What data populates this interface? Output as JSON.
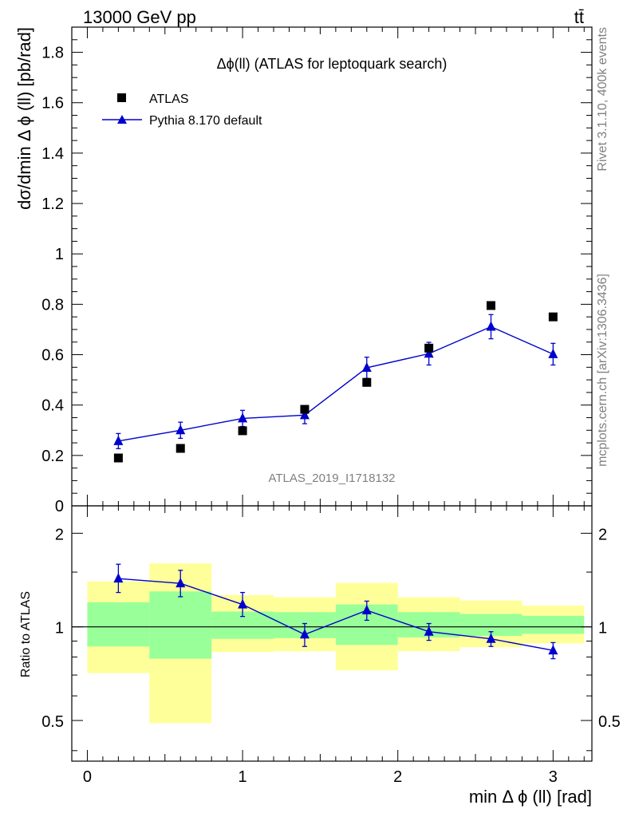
{
  "header": {
    "left": "13000 GeV pp",
    "right": "tt̄"
  },
  "side_labels": {
    "rivet": "Rivet 3.1.10,  400k events",
    "mcplots": "mcplots.cern.ch [arXiv:1306.3436]"
  },
  "chart_data": [
    {
      "type": "scatter",
      "title": "Δϕ(ll) (ATLAS for leptoquark search)",
      "watermark": "ATLAS_2019_I1718132",
      "ylabel": "dσ/dmin Δ ϕ (ll) [pb/rad]",
      "xlim": [
        -0.1,
        3.25
      ],
      "ylim": [
        0,
        1.9
      ],
      "y_ticks": [
        0,
        0.2,
        0.4,
        0.6,
        0.8,
        1,
        1.2,
        1.4,
        1.6,
        1.8
      ],
      "y_tick_labels": [
        "0",
        "0.2",
        "0.4",
        "0.6",
        "0.8",
        "1",
        "1.2",
        "1.4",
        "1.6",
        "1.8"
      ],
      "legend": {
        "placement": "top-left",
        "entries": [
          "ATLAS",
          "Pythia 8.170 default"
        ]
      },
      "series": [
        {
          "name": "ATLAS",
          "marker": "square",
          "color": "#000000",
          "x": [
            0.2,
            0.6,
            1.0,
            1.4,
            1.8,
            2.2,
            2.6,
            3.0
          ],
          "y": [
            0.19,
            0.228,
            0.298,
            0.383,
            0.49,
            0.626,
            0.795,
            0.75
          ]
        },
        {
          "name": "Pythia 8.170 default",
          "marker": "triangle",
          "color": "#0000cc",
          "x": [
            0.2,
            0.6,
            1.0,
            1.4,
            1.8,
            2.2,
            2.6,
            3.0
          ],
          "y": [
            0.257,
            0.3,
            0.347,
            0.36,
            0.548,
            0.604,
            0.711,
            0.602
          ],
          "err": [
            0.03,
            0.032,
            0.032,
            0.034,
            0.042,
            0.045,
            0.048,
            0.043
          ]
        }
      ]
    },
    {
      "type": "scatter",
      "ylabel": "Ratio to ATLAS",
      "xlabel": "min Δ ϕ (ll) [rad]",
      "xlim": [
        -0.1,
        3.25
      ],
      "ylim": [
        0.37,
        2.45
      ],
      "log_y": true,
      "x_ticks": [
        0,
        1,
        2,
        3
      ],
      "x_tick_labels": [
        "0",
        "1",
        "2",
        "3"
      ],
      "y_ticks": [
        0.5,
        1,
        2
      ],
      "y_tick_labels": [
        "0.5",
        "1",
        "2"
      ],
      "uncertainty_bands": {
        "bin_edges": [
          0,
          0.4,
          0.8,
          1.2,
          1.6,
          2.0,
          2.4,
          2.8,
          3.2
        ],
        "inner_color": "#99ff99",
        "outer_color": "#ffff99",
        "inner_low": [
          0.865,
          0.79,
          0.915,
          0.92,
          0.875,
          0.925,
          0.935,
          0.95
        ],
        "inner_high": [
          1.2,
          1.3,
          1.12,
          1.115,
          1.18,
          1.115,
          1.1,
          1.085
        ],
        "outer_low": [
          0.71,
          0.49,
          0.83,
          0.835,
          0.725,
          0.835,
          0.86,
          0.885
        ],
        "outer_high": [
          1.4,
          1.6,
          1.265,
          1.245,
          1.385,
          1.245,
          1.215,
          1.17
        ]
      },
      "series": [
        {
          "name": "Pythia 8.170 default",
          "marker": "triangle",
          "color": "#0000cc",
          "x": [
            0.2,
            0.6,
            1.0,
            1.4,
            1.8,
            2.2,
            2.6,
            3.0
          ],
          "y": [
            1.43,
            1.38,
            1.18,
            0.945,
            1.13,
            0.965,
            0.915,
            0.84
          ],
          "err_low": [
            0.14,
            0.13,
            0.1,
            0.08,
            0.08,
            0.06,
            0.05,
            0.05
          ],
          "err_high": [
            0.16,
            0.14,
            0.11,
            0.08,
            0.08,
            0.06,
            0.05,
            0.05
          ]
        }
      ]
    }
  ]
}
